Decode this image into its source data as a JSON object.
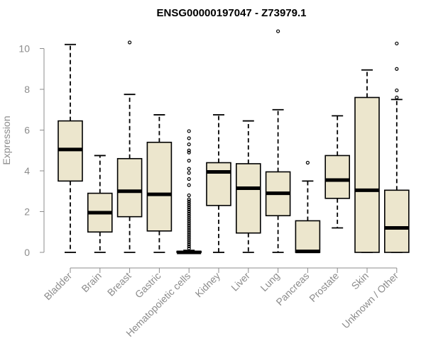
{
  "chart_data": {
    "type": "box",
    "title": "ENSG00000197047 - Z73979.1",
    "ylabel": "Expression",
    "xlabel": "",
    "ylim": [
      0,
      10.5
    ],
    "yticks": [
      0,
      2,
      4,
      6,
      8,
      10
    ],
    "grid": false,
    "box_color": "#ece6cd",
    "categories": [
      "Bladder",
      "Brain",
      "Breast",
      "Gastric",
      "Hematopoietic cells",
      "Kidney",
      "Liver",
      "Lung",
      "Pancreas",
      "Prostate",
      "Skin",
      "Unknown / Other"
    ],
    "boxes": [
      {
        "category": "Bladder",
        "whisker_low": 0,
        "q1": 3.5,
        "median": 5.05,
        "q3": 6.45,
        "whisker_high": 10.2,
        "outliers": []
      },
      {
        "category": "Brain",
        "whisker_low": 0,
        "q1": 1.0,
        "median": 1.95,
        "q3": 2.9,
        "whisker_high": 4.75,
        "outliers": []
      },
      {
        "category": "Breast",
        "whisker_low": 0,
        "q1": 1.75,
        "median": 3.0,
        "q3": 4.6,
        "whisker_high": 7.75,
        "outliers": [
          10.3
        ]
      },
      {
        "category": "Gastric",
        "whisker_low": 0,
        "q1": 1.05,
        "median": 2.85,
        "q3": 5.4,
        "whisker_high": 6.75,
        "outliers": []
      },
      {
        "category": "Hematopoietic cells",
        "whisker_low": 0,
        "q1": 0,
        "median": 0,
        "q3": 0.05,
        "whisker_high": 0.1,
        "outliers": [
          0.2,
          0.3,
          0.4,
          0.5,
          0.6,
          0.7,
          0.8,
          0.9,
          1.0,
          1.1,
          1.2,
          1.3,
          1.4,
          1.5,
          1.6,
          1.7,
          1.8,
          1.9,
          2.0,
          2.1,
          2.2,
          2.3,
          2.4,
          2.5,
          2.6,
          2.8,
          3.3,
          3.6,
          3.9,
          4.1,
          4.5,
          4.9,
          5.0,
          5.3,
          5.6,
          5.95
        ]
      },
      {
        "category": "Kidney",
        "whisker_low": 0,
        "q1": 2.3,
        "median": 3.95,
        "q3": 4.4,
        "whisker_high": 6.75,
        "outliers": []
      },
      {
        "category": "Liver",
        "whisker_low": 0,
        "q1": 0.95,
        "median": 3.15,
        "q3": 4.35,
        "whisker_high": 6.45,
        "outliers": []
      },
      {
        "category": "Lung",
        "whisker_low": 0,
        "q1": 1.8,
        "median": 2.9,
        "q3": 3.95,
        "whisker_high": 7.0,
        "outliers": [
          10.85
        ]
      },
      {
        "category": "Pancreas",
        "whisker_low": 0,
        "q1": 0,
        "median": 0.05,
        "q3": 1.55,
        "whisker_high": 3.5,
        "outliers": [
          4.4
        ]
      },
      {
        "category": "Prostate",
        "whisker_low": 1.2,
        "q1": 2.65,
        "median": 3.55,
        "q3": 4.75,
        "whisker_high": 6.7,
        "outliers": []
      },
      {
        "category": "Skin",
        "whisker_low": 0,
        "q1": 0,
        "median": 3.05,
        "q3": 7.6,
        "whisker_high": 8.95,
        "outliers": []
      },
      {
        "category": "Unknown / Other",
        "whisker_low": 0,
        "q1": 0,
        "median": 1.2,
        "q3": 3.05,
        "whisker_high": 7.5,
        "outliers": [
          7.6,
          7.95,
          9.0,
          10.25
        ]
      }
    ]
  }
}
